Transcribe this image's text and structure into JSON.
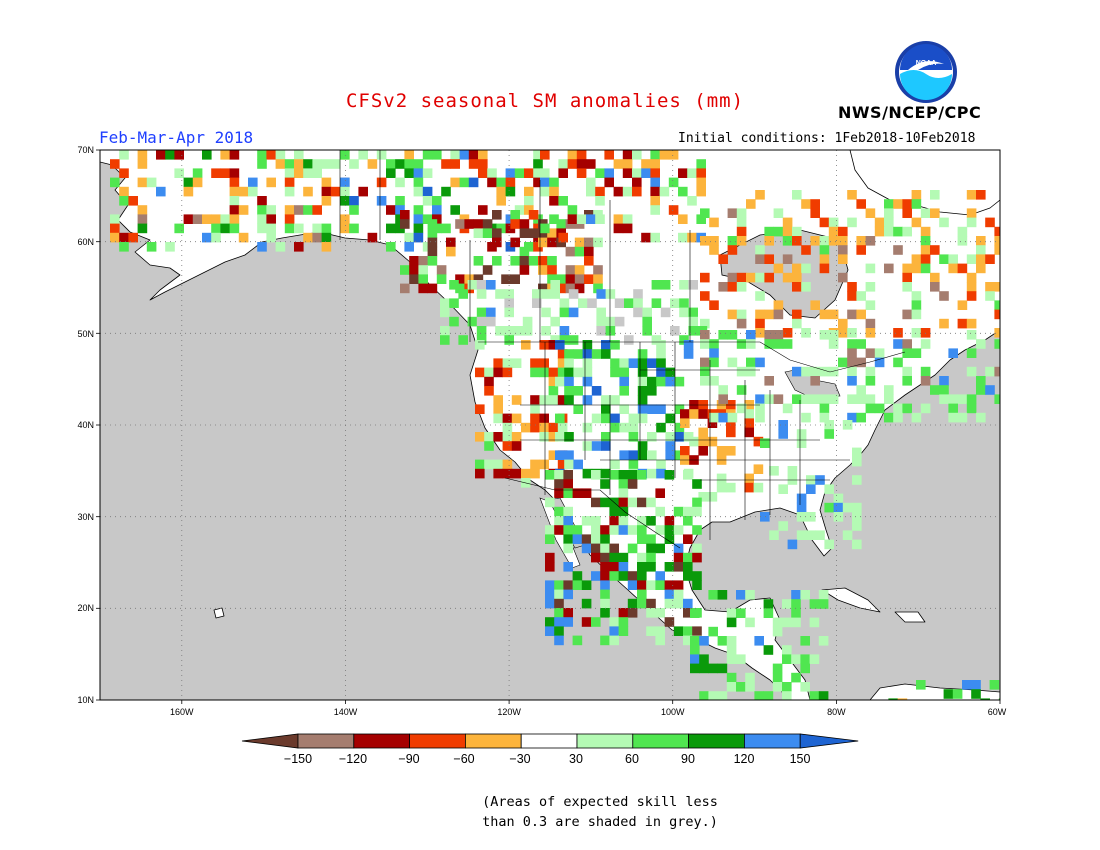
{
  "header": {
    "title": "CFSv2 seasonal SM anomalies (mm)",
    "period": "Feb-Mar-Apr 2018",
    "initial_conditions": "Initial conditions: 1Feb2018-10Feb2018",
    "organization": "NWS/NCEP/CPC",
    "logo_text": "NOAA"
  },
  "map": {
    "projection": "lat-lon",
    "lon_range": [
      -170,
      -60
    ],
    "lat_range": [
      10,
      70
    ],
    "ocean_color": "#c8c8c8",
    "lat_ticks": [
      "70N",
      "60N",
      "50N",
      "40N",
      "30N",
      "20N",
      "10N"
    ],
    "lon_ticks": [
      "160W",
      "140W",
      "120W",
      "100W",
      "80W",
      "60W"
    ]
  },
  "colorbar": {
    "labels": [
      "−150",
      "−120",
      "−90",
      "−60",
      "−30",
      "30",
      "60",
      "90",
      "120",
      "150"
    ],
    "colors": [
      "#6b3a2c",
      "#a57d6f",
      "#a50000",
      "#f03c00",
      "#fcb43c",
      "#ffffff",
      "#b4fab4",
      "#50e650",
      "#0a9a0a",
      "#3c8cf0",
      "#1e64d2"
    ]
  },
  "note": {
    "line1": "(Areas of expected skill less",
    "line2": "than 0.3 are shaded in grey.)"
  }
}
